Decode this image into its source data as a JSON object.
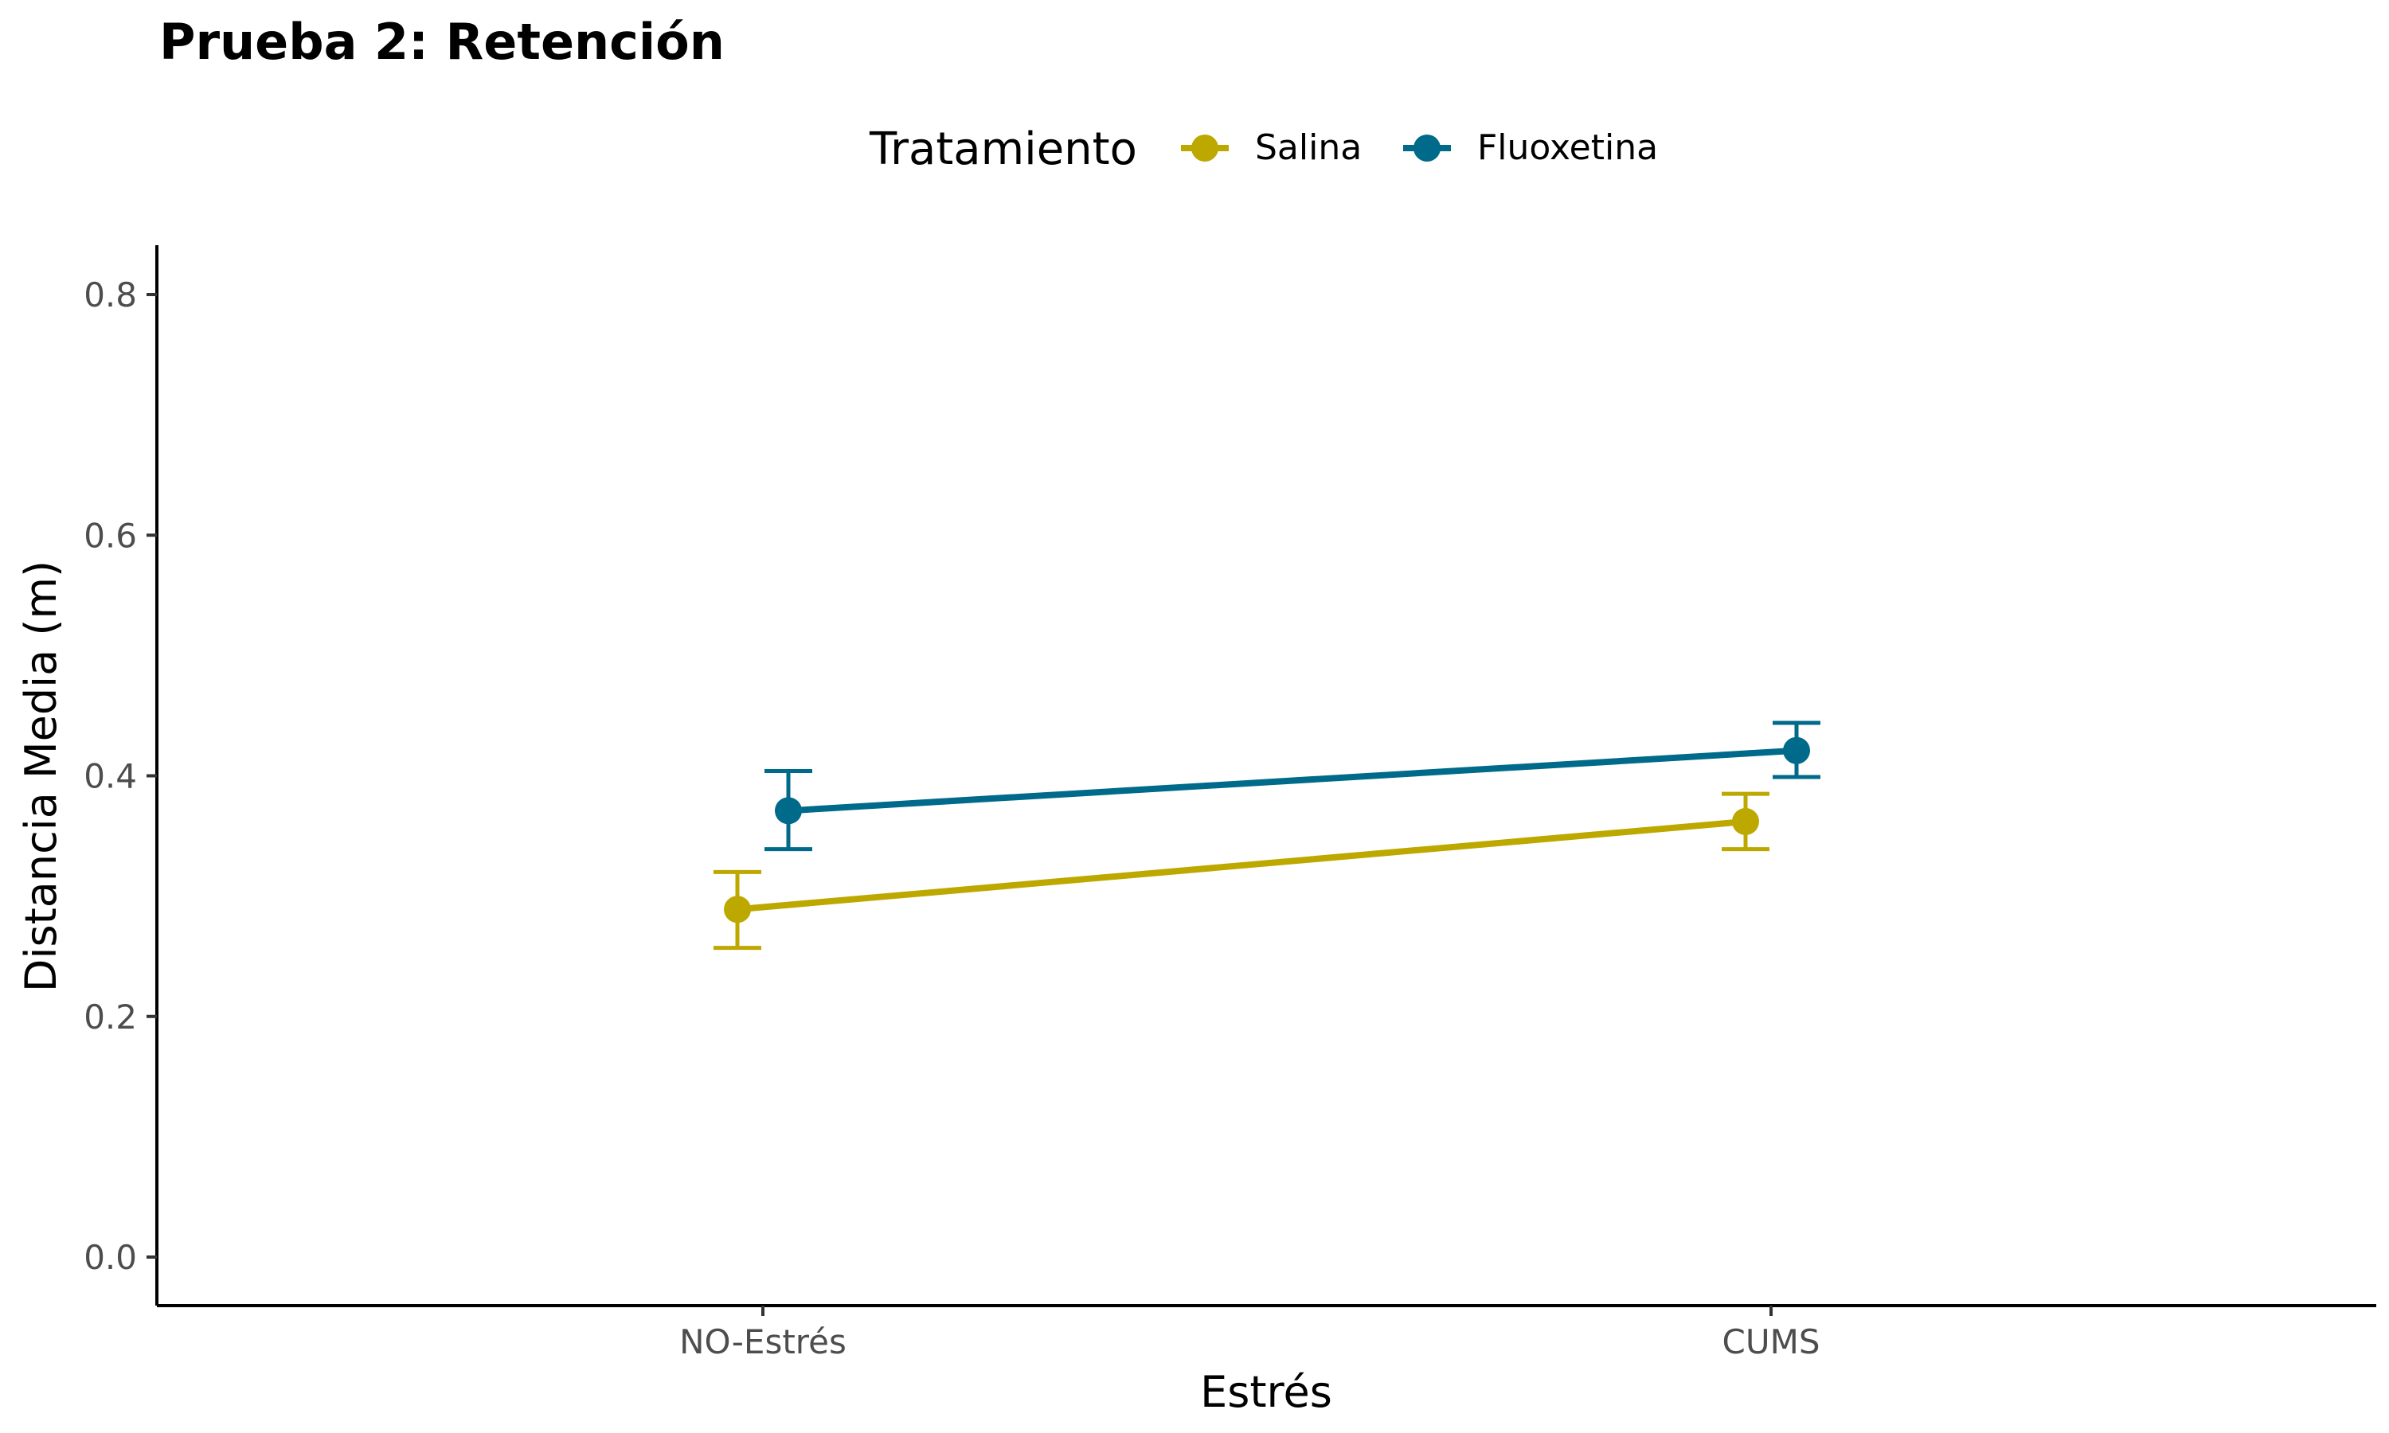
{
  "chart_data": {
    "type": "line",
    "title": "Prueba 2: Retención",
    "xlabel": "Estrés",
    "ylabel": "Distancia Media (m)",
    "categories": [
      "NO-Estrés",
      "CUMS"
    ],
    "ylim": [
      -0.04,
      0.84
    ],
    "yticks": [
      0.0,
      0.2,
      0.4,
      0.6,
      0.8
    ],
    "ytick_labels": [
      "0.0",
      "0.2",
      "0.4",
      "0.6",
      "0.8"
    ],
    "grid": false,
    "legend": {
      "title": "Tratamiento",
      "position": "top"
    },
    "series": [
      {
        "name": "Salina",
        "color": "#BDA800",
        "values": [
          0.289,
          0.362
        ],
        "error_low": [
          0.257,
          0.339
        ],
        "error_high": [
          0.32,
          0.385
        ]
      },
      {
        "name": "Fluoxetina",
        "color": "#006A8A",
        "values": [
          0.371,
          0.421
        ],
        "error_low": [
          0.339,
          0.399
        ],
        "error_high": [
          0.404,
          0.444
        ]
      }
    ]
  }
}
